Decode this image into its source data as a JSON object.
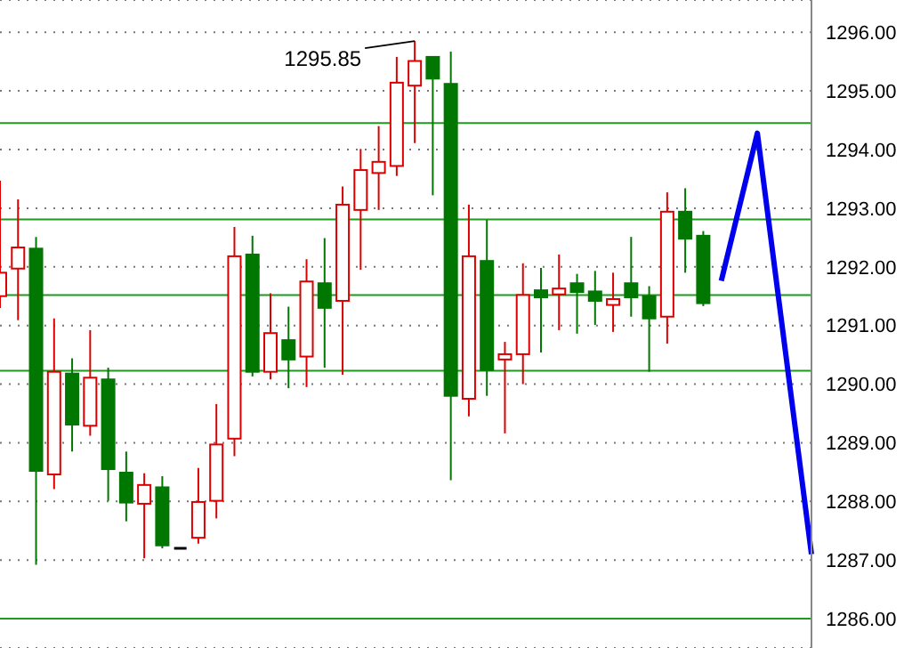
{
  "chart_data": {
    "type": "candlestick",
    "categories": [
      null,
      null,
      null,
      null,
      null,
      null,
      null,
      null,
      null,
      null,
      null,
      null,
      null,
      null,
      null,
      null,
      null,
      null,
      null,
      null,
      null,
      null,
      null,
      null,
      null,
      null,
      null,
      null,
      null,
      null,
      null,
      null,
      null,
      null,
      null,
      null,
      null,
      null,
      null,
      null,
      null,
      null,
      null,
      null,
      null,
      null
    ],
    "series": [
      {
        "ohlc": [
          [
            1291.5,
            1293.47,
            1291.3,
            1291.9
          ],
          [
            1291.97,
            1293.15,
            1291.09,
            1292.33
          ],
          [
            1292.31,
            1292.51,
            1286.92,
            1288.52
          ],
          [
            1288.46,
            1291.12,
            1288.21,
            1290.21
          ],
          [
            1290.18,
            1290.44,
            1288.85,
            1289.31
          ],
          [
            1289.29,
            1290.92,
            1289.12,
            1290.11
          ],
          [
            1290.08,
            1290.28,
            1288.01,
            1288.55
          ],
          [
            1288.49,
            1288.85,
            1287.66,
            1287.98
          ],
          [
            1287.96,
            1288.48,
            1287.03,
            1288.28
          ],
          [
            1288.24,
            1288.43,
            1287.2,
            1287.25
          ],
          [
            1287.2,
            1287.2,
            1287.2,
            1287.2
          ],
          [
            1287.38,
            1288.57,
            1287.28,
            1287.99
          ],
          [
            1288.01,
            1289.66,
            1287.71,
            1288.97
          ],
          [
            1289.07,
            1292.68,
            1288.77,
            1292.18
          ],
          [
            1292.21,
            1292.53,
            1290.13,
            1290.21
          ],
          [
            1290.21,
            1291.55,
            1290.08,
            1290.87
          ],
          [
            1290.75,
            1291.32,
            1289.93,
            1290.42
          ],
          [
            1290.47,
            1292.13,
            1289.95,
            1291.75
          ],
          [
            1291.72,
            1292.49,
            1290.28,
            1291.3
          ],
          [
            1291.42,
            1293.37,
            1290.16,
            1293.06
          ],
          [
            1292.97,
            1294.01,
            1291.95,
            1293.65
          ],
          [
            1293.6,
            1294.4,
            1292.97,
            1293.79
          ],
          [
            1293.72,
            1295.58,
            1293.55,
            1295.14
          ],
          [
            1295.09,
            1295.85,
            1294.11,
            1295.51
          ],
          [
            1295.58,
            1295.58,
            1293.22,
            1295.21
          ],
          [
            1295.12,
            1295.67,
            1288.36,
            1289.8
          ],
          [
            1289.75,
            1293.06,
            1289.45,
            1292.18
          ],
          [
            1292.1,
            1292.8,
            1289.8,
            1290.24
          ],
          [
            1290.42,
            1290.72,
            1289.16,
            1290.51
          ],
          [
            1290.51,
            1292.06,
            1290.0,
            1291.52
          ],
          [
            1291.6,
            1291.98,
            1290.54,
            1291.48
          ],
          [
            1291.53,
            1292.21,
            1290.92,
            1291.63
          ],
          [
            1291.72,
            1291.88,
            1290.86,
            1291.57
          ],
          [
            1291.58,
            1291.93,
            1291.01,
            1291.42
          ],
          [
            1291.35,
            1291.9,
            1290.89,
            1291.45
          ],
          [
            1291.72,
            1292.51,
            1291.15,
            1291.48
          ],
          [
            1291.5,
            1291.67,
            1290.21,
            1291.12
          ],
          [
            1291.15,
            1293.27,
            1290.69,
            1292.94
          ],
          [
            1292.94,
            1293.34,
            1291.9,
            1292.48
          ],
          [
            1292.53,
            1292.61,
            1291.33,
            1291.38
          ],
          null,
          null,
          null,
          null,
          null,
          null
        ],
        "colors": [
          "#dd0000",
          "#dd0000",
          "#007700",
          "#dd0000",
          "#007700",
          "#dd0000",
          "#007700",
          "#007700",
          "#dd0000",
          "#007700",
          "#000000",
          "#dd0000",
          "#dd0000",
          "#dd0000",
          "#007700",
          "#dd0000",
          "#007700",
          "#dd0000",
          "#007700",
          "#dd0000",
          "#dd0000",
          "#dd0000",
          "#dd0000",
          "#dd0000",
          "#007700",
          "#007700",
          "#dd0000",
          "#007700",
          "#dd0000",
          "#dd0000",
          "#007700",
          "#dd0000",
          "#007700",
          "#007700",
          "#dd0000",
          "#007700",
          "#007700",
          "#dd0000",
          "#007700",
          "#007700",
          null,
          null,
          null,
          null,
          null,
          null
        ]
      },
      {
        "type": "line",
        "color": "#0000ee",
        "values": [
          null,
          null,
          null,
          null,
          null,
          null,
          null,
          null,
          null,
          null,
          null,
          null,
          null,
          null,
          null,
          null,
          null,
          null,
          null,
          null,
          null,
          null,
          null,
          null,
          null,
          null,
          null,
          null,
          null,
          null,
          null,
          null,
          null,
          null,
          null,
          null,
          null,
          null,
          null,
          null,
          1291.76,
          null,
          1294.28,
          null,
          null,
          1287.1
        ]
      }
    ],
    "ylim": [
      1285.5,
      1296.55
    ],
    "yticks": [
      {
        "value": 1286,
        "label": "1286.00"
      },
      {
        "value": 1287,
        "label": "1287.00"
      },
      {
        "value": 1288,
        "label": "1288.00"
      },
      {
        "value": 1289,
        "label": "1289.00"
      },
      {
        "value": 1290,
        "label": "1290.00"
      },
      {
        "value": 1291,
        "label": "1291.00"
      },
      {
        "value": 1292,
        "label": "1292.00"
      },
      {
        "value": 1293,
        "label": "1293.00"
      },
      {
        "value": 1294,
        "label": "1294.00"
      },
      {
        "value": 1295,
        "label": "1295.00"
      },
      {
        "value": 1296,
        "label": "1296.00"
      }
    ],
    "ref_lines": [
      {
        "axis": "y",
        "value": 1294.45,
        "color": "#1f9a1f"
      },
      {
        "axis": "y",
        "value": 1292.81,
        "color": "#1f9a1f"
      },
      {
        "axis": "y",
        "value": 1291.52,
        "color": "#1f9a1f"
      },
      {
        "axis": "y",
        "value": 1290.23,
        "color": "#1f9a1f"
      },
      {
        "axis": "y",
        "value": 1286.0,
        "color": "#1f9a1f"
      }
    ],
    "annotations": [
      "1295.85"
    ],
    "grid": "y",
    "tick_labels": "y"
  }
}
